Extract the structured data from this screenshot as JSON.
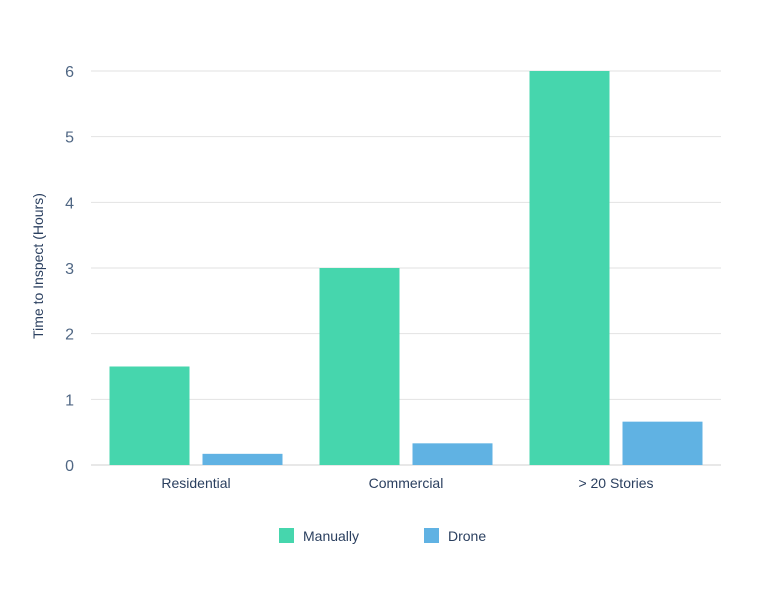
{
  "chart_data": {
    "type": "bar",
    "title": "",
    "xlabel": "",
    "ylabel": "Time to Inspect (Hours)",
    "categories": [
      "Residential",
      "Commercial",
      "> 20 Stories"
    ],
    "series": [
      {
        "name": "Manually",
        "values": [
          1.5,
          3,
          6
        ],
        "color": "#46d6ad"
      },
      {
        "name": "Drone",
        "values": [
          0.17,
          0.33,
          0.66
        ],
        "color": "#60b2e3"
      }
    ],
    "ylim": [
      0,
      6
    ],
    "yticks": [
      0,
      1,
      2,
      3,
      4,
      5,
      6
    ],
    "grid": true,
    "legend_position": "bottom-center"
  }
}
